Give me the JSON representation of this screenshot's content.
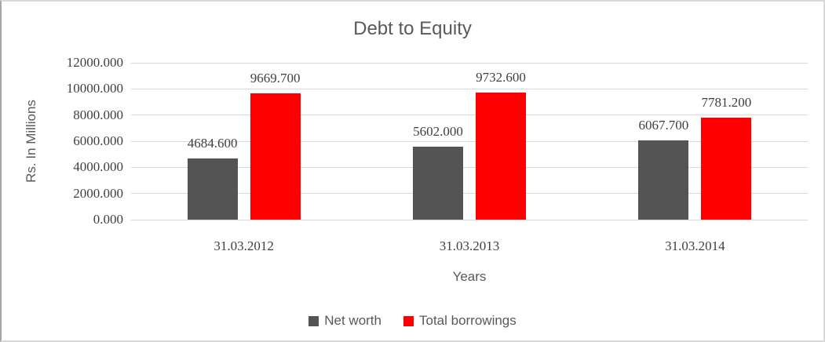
{
  "chart_data": {
    "type": "bar",
    "title": "Debt to Equity",
    "xlabel": "Years",
    "ylabel": "Rs. In Millions",
    "categories": [
      "31.03.2012",
      "31.03.2013",
      "31.03.2014"
    ],
    "series": [
      {
        "name": "Net worth",
        "color": "#545454",
        "values": [
          4684.6,
          5602.0,
          6067.7
        ],
        "labels": [
          "4684.600",
          "5602.000",
          "6067.700"
        ]
      },
      {
        "name": "Total borrowings",
        "color": "#ff0000",
        "values": [
          9669.7,
          9732.6,
          7781.2
        ],
        "labels": [
          "9669.700",
          "9732.600",
          "7781.200"
        ]
      }
    ],
    "ylim": [
      0,
      12000
    ],
    "yticks": [
      {
        "value": 0,
        "label": "0.000"
      },
      {
        "value": 2000,
        "label": "2000.000"
      },
      {
        "value": 4000,
        "label": "4000.000"
      },
      {
        "value": 6000,
        "label": "6000.000"
      },
      {
        "value": 8000,
        "label": "8000.000"
      },
      {
        "value": 10000,
        "label": "10000.000"
      },
      {
        "value": 12000,
        "label": "12000.000"
      }
    ],
    "grid": true,
    "gridline_color": "#d9d9d9",
    "legend_position": "bottom"
  }
}
